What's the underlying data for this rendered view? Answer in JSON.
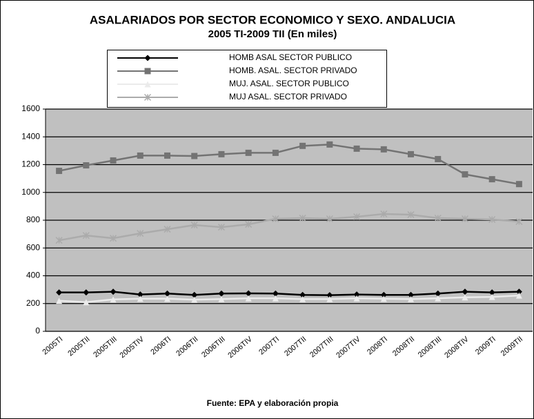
{
  "chart_data": {
    "type": "line",
    "title": "ASALARIADOS POR SECTOR ECONOMICO Y SEXO. ANDALUCIA",
    "subtitle": "2005 TI-2009 TII (En miles)",
    "source": "Fuente: EPA y elaboración propia",
    "categories": [
      "2005TI",
      "2005TII",
      "2005TIII",
      "2005TIV",
      "2006TI",
      "2006TII",
      "2006TIII",
      "2006TIV",
      "2007TI",
      "2007TII",
      "2007TIII",
      "2007TIV",
      "2008TI",
      "2008TII",
      "2008TIII",
      "2008TIV",
      "2009TI",
      "2009TII"
    ],
    "series": [
      {
        "name": "HOMB ASAL SECTOR PUBLICO",
        "color": "#000000",
        "marker": "diamond",
        "values": [
          280,
          280,
          285,
          265,
          272,
          262,
          272,
          273,
          272,
          262,
          260,
          265,
          262,
          262,
          272,
          285,
          280,
          285
        ]
      },
      {
        "name": "HOMB. ASAL. SECTOR PRIVADO",
        "color": "#737373",
        "marker": "square",
        "values": [
          1155,
          1195,
          1230,
          1265,
          1265,
          1262,
          1275,
          1285,
          1285,
          1335,
          1345,
          1315,
          1310,
          1275,
          1240,
          1130,
          1095,
          1060
        ]
      },
      {
        "name": "MUJ. ASAL. SECTOR PUBLICO",
        "color": "#ebebeb",
        "marker": "triangle",
        "values": [
          220,
          210,
          230,
          235,
          235,
          228,
          232,
          238,
          238,
          232,
          232,
          238,
          235,
          232,
          238,
          245,
          248,
          258
        ]
      },
      {
        "name": "MUJ ASAL. SECTOR PRIVADO",
        "color": "#ababab",
        "marker": "x",
        "values": [
          655,
          690,
          670,
          705,
          735,
          765,
          750,
          770,
          810,
          815,
          810,
          825,
          845,
          840,
          815,
          810,
          805,
          790
        ]
      }
    ],
    "ylim": [
      0,
      1600
    ],
    "yticks": [
      0,
      200,
      400,
      600,
      800,
      1000,
      1200,
      1400,
      1600
    ],
    "grid": true
  }
}
